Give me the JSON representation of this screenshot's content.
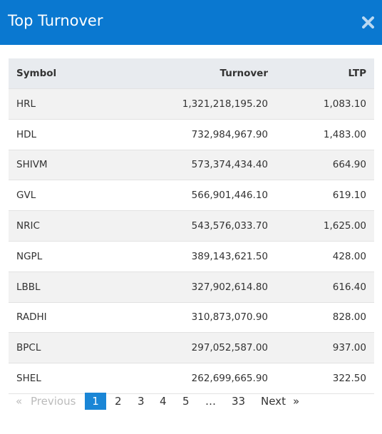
{
  "header": {
    "title": "Top Turnover"
  },
  "table": {
    "columns": [
      "Symbol",
      "Turnover",
      "LTP"
    ],
    "rows": [
      [
        "HRL",
        "1,321,218,195.20",
        "1,083.10"
      ],
      [
        "HDL",
        "732,984,967.90",
        "1,483.00"
      ],
      [
        "SHIVM",
        "573,374,434.40",
        "664.90"
      ],
      [
        "GVL",
        "566,901,446.10",
        "619.10"
      ],
      [
        "NRIC",
        "543,576,033.70",
        "1,625.00"
      ],
      [
        "NGPL",
        "389,143,621.50",
        "428.00"
      ],
      [
        "LBBL",
        "327,902,614.80",
        "616.40"
      ],
      [
        "RADHI",
        "310,873,070.90",
        "828.00"
      ],
      [
        "BPCL",
        "297,052,587.00",
        "937.00"
      ],
      [
        "SHEL",
        "262,699,665.90",
        "322.50"
      ]
    ]
  },
  "pagination": {
    "items": [
      "«",
      "Previous",
      "1",
      "2",
      "3",
      "4",
      "5",
      "…",
      "33",
      "Next",
      "»"
    ],
    "active": "1"
  }
}
